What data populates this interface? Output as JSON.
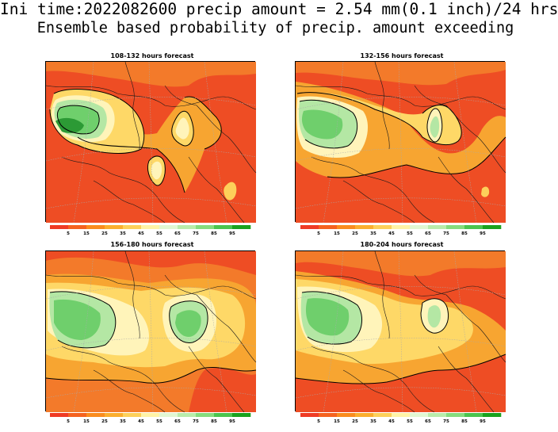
{
  "title_line1": "Ini time:2022082600 precip amount = 2.54 mm(0.1 inch)/24 hrs",
  "title_line2": "Ensemble based probability of precip. amount exceeding",
  "panels": [
    {
      "title": "108-132 hours forecast"
    },
    {
      "title": "132-156 hours forecast"
    },
    {
      "title": "156-180 hours forecast"
    },
    {
      "title": "180-204 hours forecast"
    }
  ],
  "colorbar": {
    "levels": [
      "5",
      "15",
      "25",
      "35",
      "45",
      "55",
      "65",
      "75",
      "85",
      "95"
    ],
    "colors": [
      "#ef3b24",
      "#f5621f",
      "#fa8c1e",
      "#fbae2e",
      "#fdd05a",
      "#fff3a6",
      "#e1f7d2",
      "#b9ecaa",
      "#86dc7d",
      "#4cc44e",
      "#1aa21e"
    ]
  },
  "map_colors": {
    "high": "#ee4d24",
    "mid_orange": "#f7a531",
    "yellow": "#fed867",
    "pale": "#fff4ba",
    "light_green": "#b4e7a4",
    "green": "#6fcf6c",
    "dark_green": "#2c9a35",
    "contour": "#000000",
    "grid": "#aaaaaa"
  }
}
